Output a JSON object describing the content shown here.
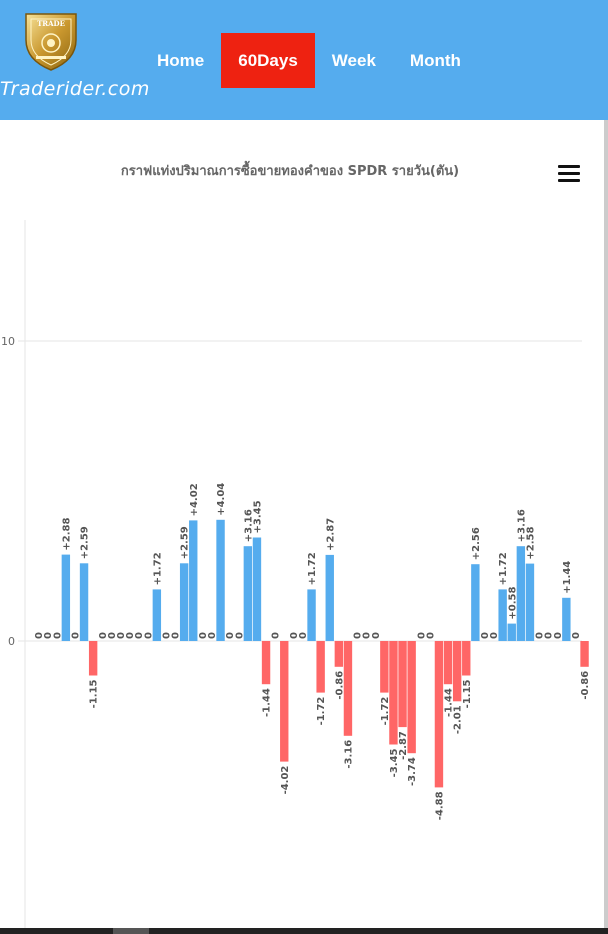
{
  "header": {
    "logo_text": "TRADE",
    "site_name": "Traderider.com",
    "nav": [
      {
        "label": "Home",
        "active": false
      },
      {
        "label": "60Days",
        "active": true
      },
      {
        "label": "Week",
        "active": false
      },
      {
        "label": "Month",
        "active": false
      }
    ]
  },
  "menu_icon": "hamburger-menu-icon",
  "colors": {
    "header_bg": "#55acee",
    "active_nav": "#ee2211",
    "positive": "#55acee",
    "negative": "#ff6666"
  },
  "chart_data": {
    "type": "bar",
    "title": "กราฟแท่งปริมาณการซื้อขายทองคำของ SPDR รายวัน(ตัน)",
    "xlabel": "",
    "ylabel": "",
    "ylim": [
      -10,
      14
    ],
    "y_ticks": [
      0,
      10
    ],
    "values": [
      0,
      0,
      0,
      2.88,
      0,
      2.59,
      -1.15,
      0,
      0,
      0,
      0,
      0,
      0,
      1.72,
      0,
      0,
      2.59,
      4.02,
      0,
      0,
      4.04,
      0,
      0,
      3.16,
      3.45,
      -1.44,
      0,
      -4.02,
      0,
      0,
      1.72,
      -1.72,
      2.87,
      -0.86,
      -3.16,
      0,
      0,
      0,
      -1.72,
      -3.45,
      -2.87,
      -3.74,
      0,
      0,
      -4.88,
      -1.44,
      -2.01,
      -1.15,
      2.56,
      0,
      0,
      1.72,
      0.58,
      3.16,
      2.58,
      0,
      0,
      0,
      1.44,
      0,
      -0.86
    ],
    "labels": [
      "0",
      "0",
      "0",
      "+2.88",
      "0",
      "+2.59",
      "-1.15",
      "0",
      "0",
      "0",
      "0",
      "0",
      "0",
      "+1.72",
      "0",
      "0",
      "+2.59",
      "+4.02",
      "0",
      "0",
      "+4.04",
      "0",
      "0",
      "+3.16",
      "+3.45",
      "-1.44",
      "0",
      "-4.02",
      "0",
      "0",
      "+1.72",
      "-1.72",
      "+2.87",
      "-0.86",
      "-3.16",
      "0",
      "0",
      "0",
      "-1.72",
      "-3.45",
      "-2.87",
      "-3.74",
      "0",
      "0",
      "-4.88",
      "-1.44",
      "-2.01",
      "-1.15",
      "+2.56",
      "0",
      "0",
      "+1.72",
      "+0.58",
      "+3.16",
      "+2.58",
      "0",
      "0",
      "0",
      "+1.44",
      "0",
      "-0.86"
    ],
    "grid": true,
    "legend": "none"
  }
}
